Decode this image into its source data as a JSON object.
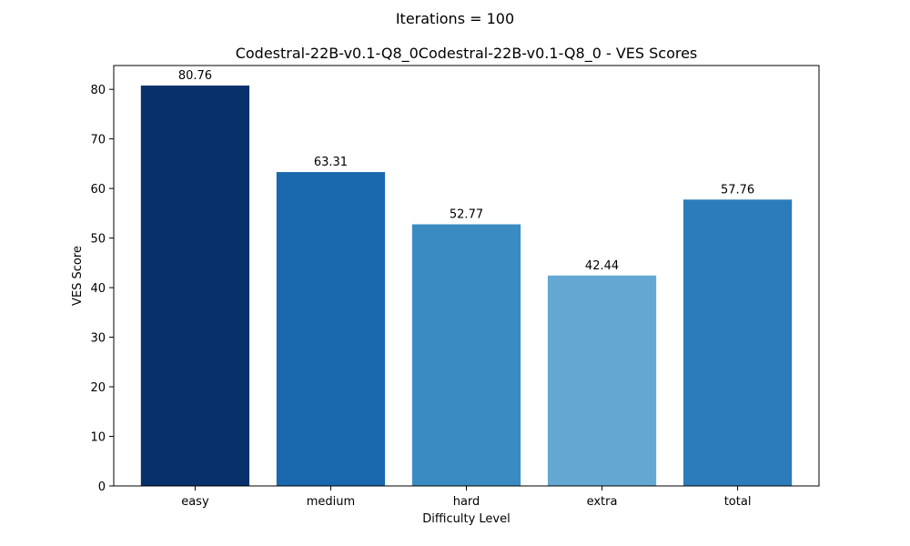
{
  "figure": {
    "suptitle": "Iterations = 100"
  },
  "chart_data": {
    "type": "bar",
    "title": "Codestral-22B-v0.1-Q8_0Codestral-22B-v0.1-Q8_0 - VES Scores",
    "xlabel": "Difficulty Level",
    "ylabel": "VES Score",
    "categories": [
      "easy",
      "medium",
      "hard",
      "extra",
      "total"
    ],
    "values": [
      80.76,
      63.31,
      52.77,
      42.44,
      57.76
    ],
    "value_labels": [
      "80.76",
      "63.31",
      "52.77",
      "42.44",
      "57.76"
    ],
    "colors": [
      "#08306b",
      "#1a68ae",
      "#3a8bc2",
      "#63a8d3",
      "#2c7bba"
    ],
    "ylim": [
      0,
      84.8
    ],
    "yticks": [
      0,
      10,
      20,
      30,
      40,
      50,
      60,
      70,
      80
    ],
    "ytick_labels": [
      "0",
      "10",
      "20",
      "30",
      "40",
      "50",
      "60",
      "70",
      "80"
    ],
    "grid": false,
    "legend": "none"
  }
}
